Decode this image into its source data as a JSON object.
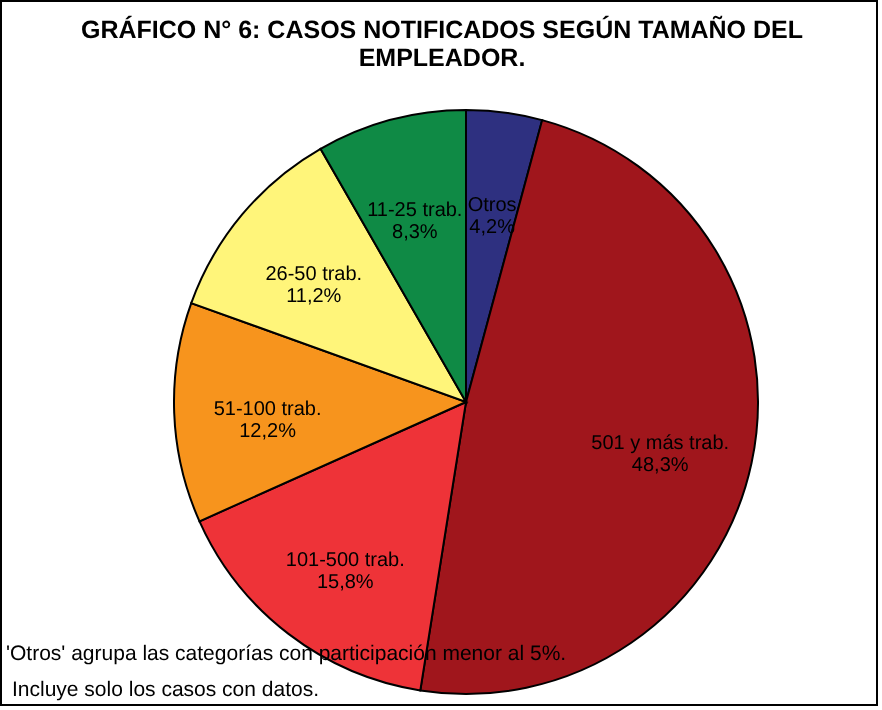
{
  "chart_data": {
    "type": "pie",
    "title": "GRÁFICO N° 6: CASOS NOTIFICADOS SEGÚN TAMAÑO DEL EMPLEADOR.",
    "categories": [
      "Otros",
      "501 y más trab.",
      "101-500 trab.",
      "51-100 trab.",
      "26-50 trab.",
      "11-25 trab."
    ],
    "values": [
      4.2,
      48.3,
      15.8,
      12.2,
      11.2,
      8.3
    ],
    "colors": [
      "#2e3080",
      "#a0161c",
      "#ee3338",
      "#f7941d",
      "#fff57a",
      "#0f8a45"
    ],
    "value_labels": [
      "4,2%",
      "48,3%",
      "15,8%",
      "12,2%",
      "11,2%",
      "8,3%"
    ],
    "annotations": [
      "'Otros' agrupa las categorías con participación menor al 5%.",
      "Incluye solo los casos con datos."
    ]
  }
}
